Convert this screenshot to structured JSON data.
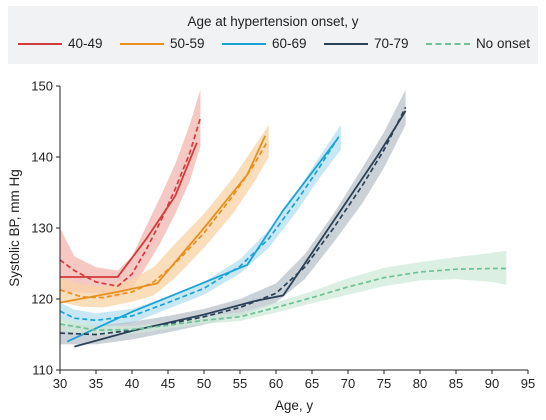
{
  "chart_data": {
    "type": "line",
    "legend_title": "Age at hypertension onset, y",
    "legend_placement": "top",
    "xlabel": "Age, y",
    "ylabel": "Systolic BP, mm Hg",
    "xlim": [
      30,
      95
    ],
    "ylim": [
      110,
      150
    ],
    "xticks": [
      30,
      35,
      40,
      45,
      50,
      55,
      60,
      65,
      70,
      75,
      80,
      85,
      90,
      95
    ],
    "yticks": [
      110,
      120,
      130,
      140,
      150
    ],
    "grid": false,
    "series": [
      {
        "name": "40-49",
        "color": "#d23b3b",
        "band_color": "#f3b6b0",
        "solid": [
          [
            30,
            123.1
          ],
          [
            38,
            123.1
          ],
          [
            42,
            128.5
          ],
          [
            46,
            134.5
          ],
          [
            49,
            142
          ]
        ],
        "dashed": [
          [
            30,
            125.5
          ],
          [
            32,
            124
          ],
          [
            35,
            122.4
          ],
          [
            38,
            121.8
          ],
          [
            40,
            123.5
          ],
          [
            42,
            127
          ],
          [
            44,
            131
          ],
          [
            46,
            135.5
          ],
          [
            48,
            140.5
          ],
          [
            49.5,
            145.5
          ]
        ],
        "band_upper": [
          [
            30,
            130
          ],
          [
            32,
            126
          ],
          [
            35,
            124.5
          ],
          [
            38,
            124
          ],
          [
            40,
            126
          ],
          [
            42,
            130.3
          ],
          [
            44,
            134.5
          ],
          [
            46,
            139
          ],
          [
            48,
            144.5
          ],
          [
            49.5,
            149.5
          ]
        ],
        "band_lower": [
          [
            49.5,
            141.5
          ],
          [
            48,
            136.5
          ],
          [
            46,
            132
          ],
          [
            44,
            128
          ],
          [
            42,
            124.6
          ],
          [
            40,
            121.5
          ],
          [
            38,
            120.2
          ],
          [
            35,
            120.8
          ],
          [
            32,
            121
          ],
          [
            30,
            121
          ]
        ]
      },
      {
        "name": "50-59",
        "color": "#e8901e",
        "band_color": "#f8d3a6",
        "solid": [
          [
            30,
            119.5
          ],
          [
            38,
            121
          ],
          [
            43.5,
            122.2
          ],
          [
            50,
            130
          ],
          [
            56,
            137.5
          ],
          [
            58.5,
            143
          ]
        ],
        "dashed": [
          [
            30,
            121.3
          ],
          [
            33,
            120.3
          ],
          [
            36,
            120.2
          ],
          [
            40,
            121
          ],
          [
            43,
            122.4
          ],
          [
            46,
            125
          ],
          [
            50,
            129.3
          ],
          [
            54,
            134.5
          ],
          [
            57,
            139
          ],
          [
            58.8,
            142.2
          ]
        ],
        "band_upper": [
          [
            30,
            123
          ],
          [
            33,
            122
          ],
          [
            36,
            121.8
          ],
          [
            40,
            122.8
          ],
          [
            43,
            124.5
          ],
          [
            46,
            127.8
          ],
          [
            50,
            132
          ],
          [
            54,
            137
          ],
          [
            57,
            141.5
          ],
          [
            59,
            144.5
          ]
        ],
        "band_lower": [
          [
            59,
            140
          ],
          [
            57,
            136.5
          ],
          [
            54,
            132
          ],
          [
            50,
            127.2
          ],
          [
            46,
            123
          ],
          [
            43,
            120.5
          ],
          [
            40,
            119.6
          ],
          [
            36,
            118.8
          ],
          [
            33,
            118.9
          ],
          [
            30,
            119.6
          ]
        ]
      },
      {
        "name": "60-69",
        "color": "#1ba3d6",
        "band_color": "#b4dff0",
        "solid": [
          [
            31,
            114
          ],
          [
            40,
            118.2
          ],
          [
            48,
            121.5
          ],
          [
            56,
            124.8
          ],
          [
            61,
            132.5
          ],
          [
            68.5,
            142.5
          ]
        ],
        "dashed": [
          [
            30,
            118.3
          ],
          [
            32,
            117.3
          ],
          [
            35,
            117
          ],
          [
            40,
            117.6
          ],
          [
            45,
            119.5
          ],
          [
            50,
            121.5
          ],
          [
            55,
            124.6
          ],
          [
            59,
            128.5
          ],
          [
            63,
            134
          ],
          [
            66,
            138.5
          ],
          [
            68.8,
            143
          ]
        ],
        "band_upper": [
          [
            30,
            119.5
          ],
          [
            32,
            118.5
          ],
          [
            35,
            118
          ],
          [
            40,
            118.6
          ],
          [
            45,
            120.3
          ],
          [
            50,
            122.4
          ],
          [
            55,
            125.6
          ],
          [
            59,
            129.7
          ],
          [
            63,
            135.3
          ],
          [
            66,
            140
          ],
          [
            69,
            144.5
          ]
        ],
        "band_lower": [
          [
            69,
            141
          ],
          [
            66,
            137
          ],
          [
            63,
            132.5
          ],
          [
            59,
            127.2
          ],
          [
            55,
            123.6
          ],
          [
            50,
            120.6
          ],
          [
            45,
            118.6
          ],
          [
            40,
            116.6
          ],
          [
            35,
            116
          ],
          [
            32,
            116.2
          ],
          [
            30,
            117
          ]
        ]
      },
      {
        "name": "70-79",
        "color": "#2a4258",
        "band_color": "#b8c1ca",
        "solid": [
          [
            32,
            113.3
          ],
          [
            40,
            115.5
          ],
          [
            50,
            117.8
          ],
          [
            57,
            119.7
          ],
          [
            61,
            120.5
          ],
          [
            65,
            126.5
          ],
          [
            70,
            134
          ],
          [
            74,
            140
          ],
          [
            78,
            146.5
          ]
        ],
        "dashed": [
          [
            30,
            115.2
          ],
          [
            35,
            115
          ],
          [
            40,
            115.6
          ],
          [
            45,
            116.5
          ],
          [
            50,
            117.5
          ],
          [
            55,
            118.8
          ],
          [
            60,
            120.8
          ],
          [
            64,
            124.5
          ],
          [
            68,
            130
          ],
          [
            72,
            136
          ],
          [
            75,
            141
          ],
          [
            78,
            147
          ]
        ],
        "band_upper": [
          [
            30,
            116.5
          ],
          [
            35,
            116.2
          ],
          [
            40,
            116.8
          ],
          [
            45,
            117.6
          ],
          [
            50,
            118.6
          ],
          [
            55,
            120
          ],
          [
            60,
            122.2
          ],
          [
            64,
            126.3
          ],
          [
            68,
            132
          ],
          [
            72,
            138.5
          ],
          [
            75,
            143.5
          ],
          [
            78,
            149.5
          ]
        ],
        "band_lower": [
          [
            78,
            144.5
          ],
          [
            75,
            138.5
          ],
          [
            72,
            133.5
          ],
          [
            68,
            128
          ],
          [
            64,
            122.8
          ],
          [
            60,
            119.5
          ],
          [
            55,
            117.6
          ],
          [
            50,
            116.4
          ],
          [
            45,
            115.3
          ],
          [
            40,
            114.3
          ],
          [
            35,
            113.6
          ],
          [
            30,
            113.6
          ]
        ]
      },
      {
        "name": "No onset",
        "color": "#6ec194",
        "band_color": "#cfe9da",
        "solid": [],
        "dashed": [
          [
            30,
            116.5
          ],
          [
            35,
            115.6
          ],
          [
            40,
            115.7
          ],
          [
            45,
            116.3
          ],
          [
            50,
            117
          ],
          [
            55,
            117.5
          ],
          [
            60,
            118.8
          ],
          [
            65,
            120.2
          ],
          [
            70,
            121.7
          ],
          [
            75,
            123
          ],
          [
            80,
            123.8
          ],
          [
            85,
            124.2
          ],
          [
            90,
            124.3
          ],
          [
            92,
            124.3
          ]
        ],
        "band_upper": [
          [
            30,
            117.4
          ],
          [
            35,
            116.2
          ],
          [
            40,
            116.2
          ],
          [
            45,
            116.8
          ],
          [
            50,
            117.5
          ],
          [
            55,
            118.1
          ],
          [
            60,
            119.5
          ],
          [
            65,
            121.1
          ],
          [
            70,
            122.9
          ],
          [
            75,
            124.4
          ],
          [
            80,
            125.2
          ],
          [
            85,
            125.9
          ],
          [
            90,
            126.5
          ],
          [
            92,
            126.8
          ]
        ],
        "band_lower": [
          [
            92,
            122
          ],
          [
            90,
            122.4
          ],
          [
            85,
            122.8
          ],
          [
            80,
            122.6
          ],
          [
            75,
            121.8
          ],
          [
            70,
            120.6
          ],
          [
            65,
            119.4
          ],
          [
            60,
            118.1
          ],
          [
            55,
            116.9
          ],
          [
            50,
            116.5
          ],
          [
            45,
            115.8
          ],
          [
            40,
            115.1
          ],
          [
            35,
            114.9
          ],
          [
            30,
            115.5
          ]
        ]
      }
    ]
  }
}
